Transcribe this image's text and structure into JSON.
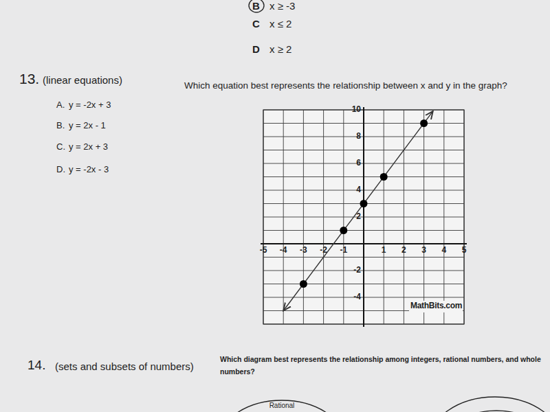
{
  "previous_choices": [
    {
      "letter": "B",
      "text": "x ≥ -3",
      "circled": true
    },
    {
      "letter": "C",
      "text": "x ≤ 2",
      "circled": false
    },
    {
      "letter": "D",
      "text": "x ≥ 2",
      "circled": false
    }
  ],
  "questions": [
    {
      "number": "13.",
      "topic": "(linear equations)",
      "prompt": "Which equation best represents the relationship between x and y in the graph?",
      "choices": [
        {
          "letter": "A.",
          "text": "y = -2x + 3"
        },
        {
          "letter": "B.",
          "text": "y = 2x - 1"
        },
        {
          "letter": "C.",
          "text": "y = 2x + 3"
        },
        {
          "letter": "D.",
          "text": "y = -2x - 3"
        }
      ]
    },
    {
      "number": "14.",
      "topic": "(sets and subsets  of numbers)",
      "prompt": "Which diagram best represents the relationship among integers, rational numbers, and whole numbers?",
      "diagram_labels": [
        "Rational"
      ]
    }
  ],
  "chart_data": {
    "type": "line",
    "xlim": [
      -5,
      5
    ],
    "ylim": [
      -6,
      10
    ],
    "xticks": [
      -5,
      -4,
      -3,
      -2,
      -1,
      1,
      2,
      3,
      4,
      5
    ],
    "yticks": [
      -4,
      -2,
      2,
      4,
      6,
      8,
      10
    ],
    "grid": true,
    "series": [
      {
        "x": [
          -4,
          3.45
        ],
        "values": [
          -5,
          9.9
        ],
        "color": "#333333",
        "marker": "arrow",
        "line_style": "solid"
      },
      {
        "type": "scatter",
        "x": [
          -3,
          -1,
          0,
          1,
          3
        ],
        "values": [
          -3,
          1,
          3,
          5,
          9
        ],
        "color": "#000000",
        "marker": "circle"
      }
    ],
    "annotations": [
      "MathBits.com"
    ]
  }
}
